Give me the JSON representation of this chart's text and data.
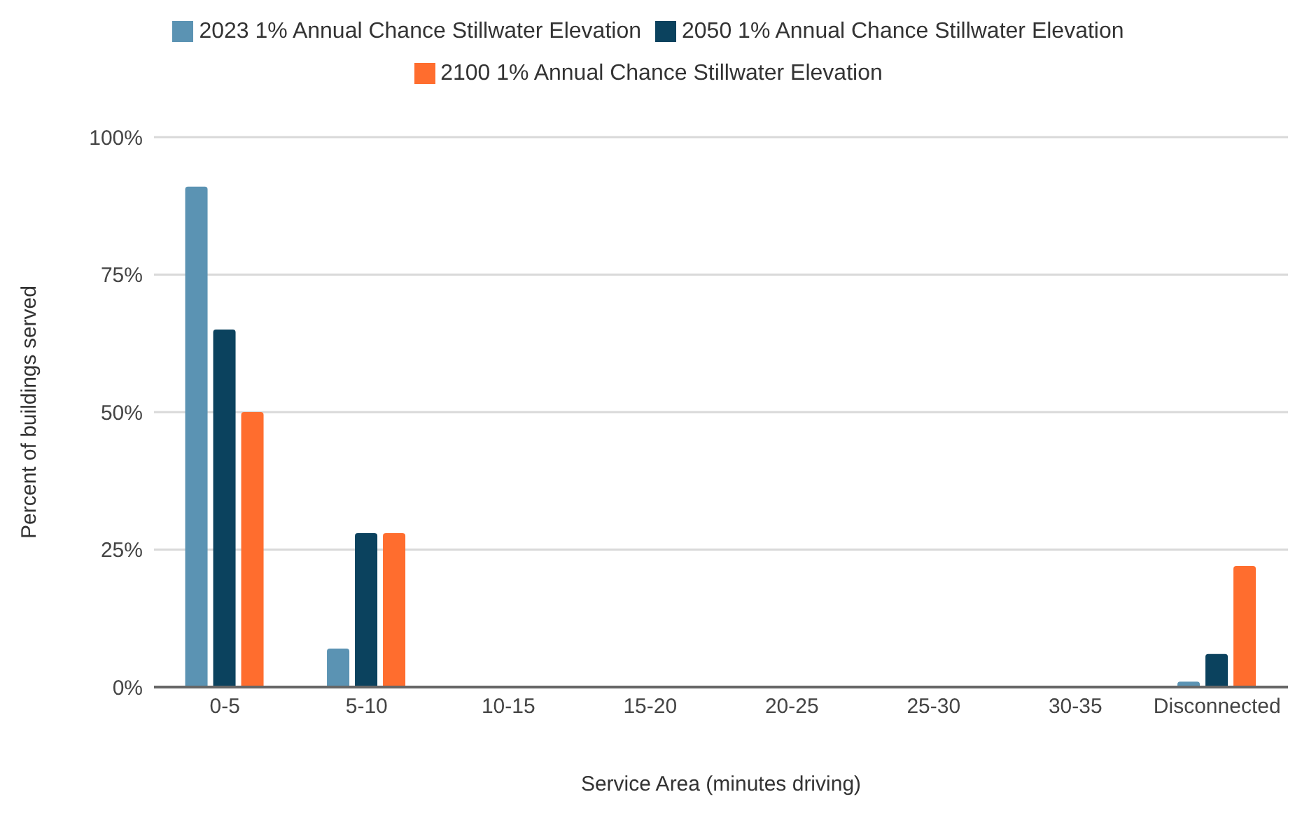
{
  "chart_data": {
    "type": "bar",
    "xlabel": "Service Area (minutes driving)",
    "ylabel": "Percent of buildings served",
    "categories": [
      "0-5",
      "5-10",
      "10-15",
      "15-20",
      "20-25",
      "25-30",
      "30-35",
      "Disconnected"
    ],
    "series": [
      {
        "name": "2023 1% Annual Chance Stillwater Elevation",
        "color": "#5b93b3",
        "values": [
          91,
          7,
          0,
          0,
          0,
          0,
          0,
          1
        ]
      },
      {
        "name": "2050 1% Annual Chance Stillwater Elevation",
        "color": "#0b425e",
        "values": [
          65,
          28,
          0,
          0,
          0,
          0,
          0,
          6
        ]
      },
      {
        "name": "2100 1% Annual Chance Stillwater Elevation",
        "color": "#ff6d2e",
        "values": [
          50,
          28,
          0,
          0,
          0,
          0,
          0,
          22
        ]
      }
    ],
    "ylim": [
      0,
      100
    ],
    "yticks": [
      {
        "value": 0,
        "label": "0%"
      },
      {
        "value": 25,
        "label": "25%"
      },
      {
        "value": 50,
        "label": "50%"
      },
      {
        "value": 75,
        "label": "75%"
      },
      {
        "value": 100,
        "label": "100%"
      }
    ],
    "grid": "y",
    "legend": "top"
  }
}
